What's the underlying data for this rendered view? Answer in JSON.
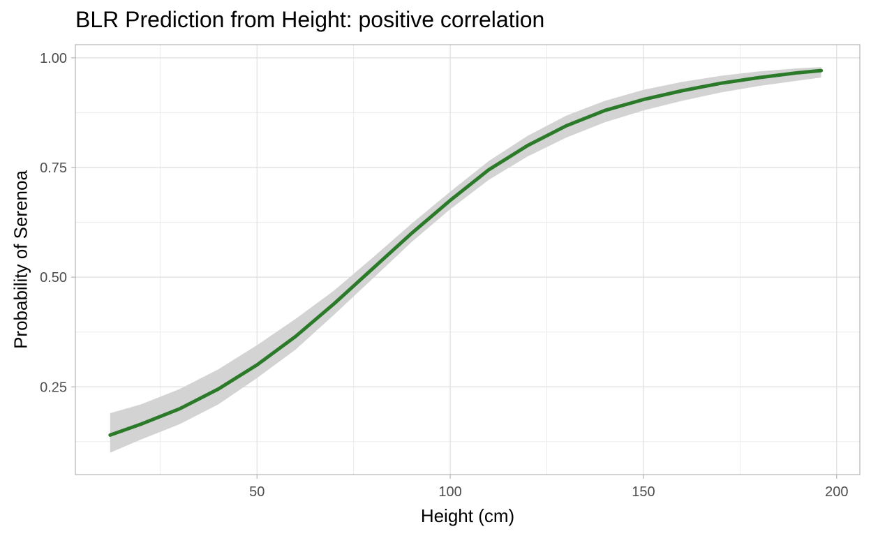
{
  "chart_data": {
    "type": "line",
    "title": "BLR Prediction from Height: positive correlation",
    "xlabel": "Height (cm)",
    "ylabel": "Probability of Serenoa",
    "xlim": [
      3,
      206
    ],
    "ylim": [
      0.05,
      1.03
    ],
    "x_ticks": [
      50,
      100,
      150,
      200
    ],
    "x_tick_labels": [
      "50",
      "100",
      "150",
      "200"
    ],
    "y_ticks": [
      0.25,
      0.5,
      0.75,
      1.0
    ],
    "y_tick_labels": [
      "0.25",
      "0.50",
      "0.75",
      "1.00"
    ],
    "x_minor_ticks": [
      25,
      75,
      125,
      175
    ],
    "y_minor_ticks": [
      0.125,
      0.375,
      0.625,
      0.875
    ],
    "grid": true,
    "legend": "none",
    "line_color": "#2a7a2a",
    "band_color": "#d3d3d3",
    "series": [
      {
        "x": [
          12,
          20,
          30,
          40,
          50,
          60,
          70,
          80,
          90,
          100,
          110,
          120,
          130,
          140,
          150,
          160,
          170,
          180,
          190,
          196
        ],
        "values": [
          0.14,
          0.165,
          0.2,
          0.245,
          0.3,
          0.365,
          0.44,
          0.52,
          0.6,
          0.675,
          0.745,
          0.8,
          0.845,
          0.88,
          0.905,
          0.925,
          0.942,
          0.955,
          0.966,
          0.971
        ],
        "lower": [
          0.1,
          0.13,
          0.165,
          0.21,
          0.27,
          0.335,
          0.415,
          0.497,
          0.58,
          0.655,
          0.722,
          0.775,
          0.818,
          0.853,
          0.88,
          0.902,
          0.921,
          0.936,
          0.948,
          0.955
        ],
        "upper": [
          0.19,
          0.21,
          0.245,
          0.29,
          0.345,
          0.405,
          0.47,
          0.545,
          0.622,
          0.695,
          0.765,
          0.822,
          0.868,
          0.902,
          0.927,
          0.945,
          0.959,
          0.969,
          0.976,
          0.979
        ]
      }
    ]
  }
}
